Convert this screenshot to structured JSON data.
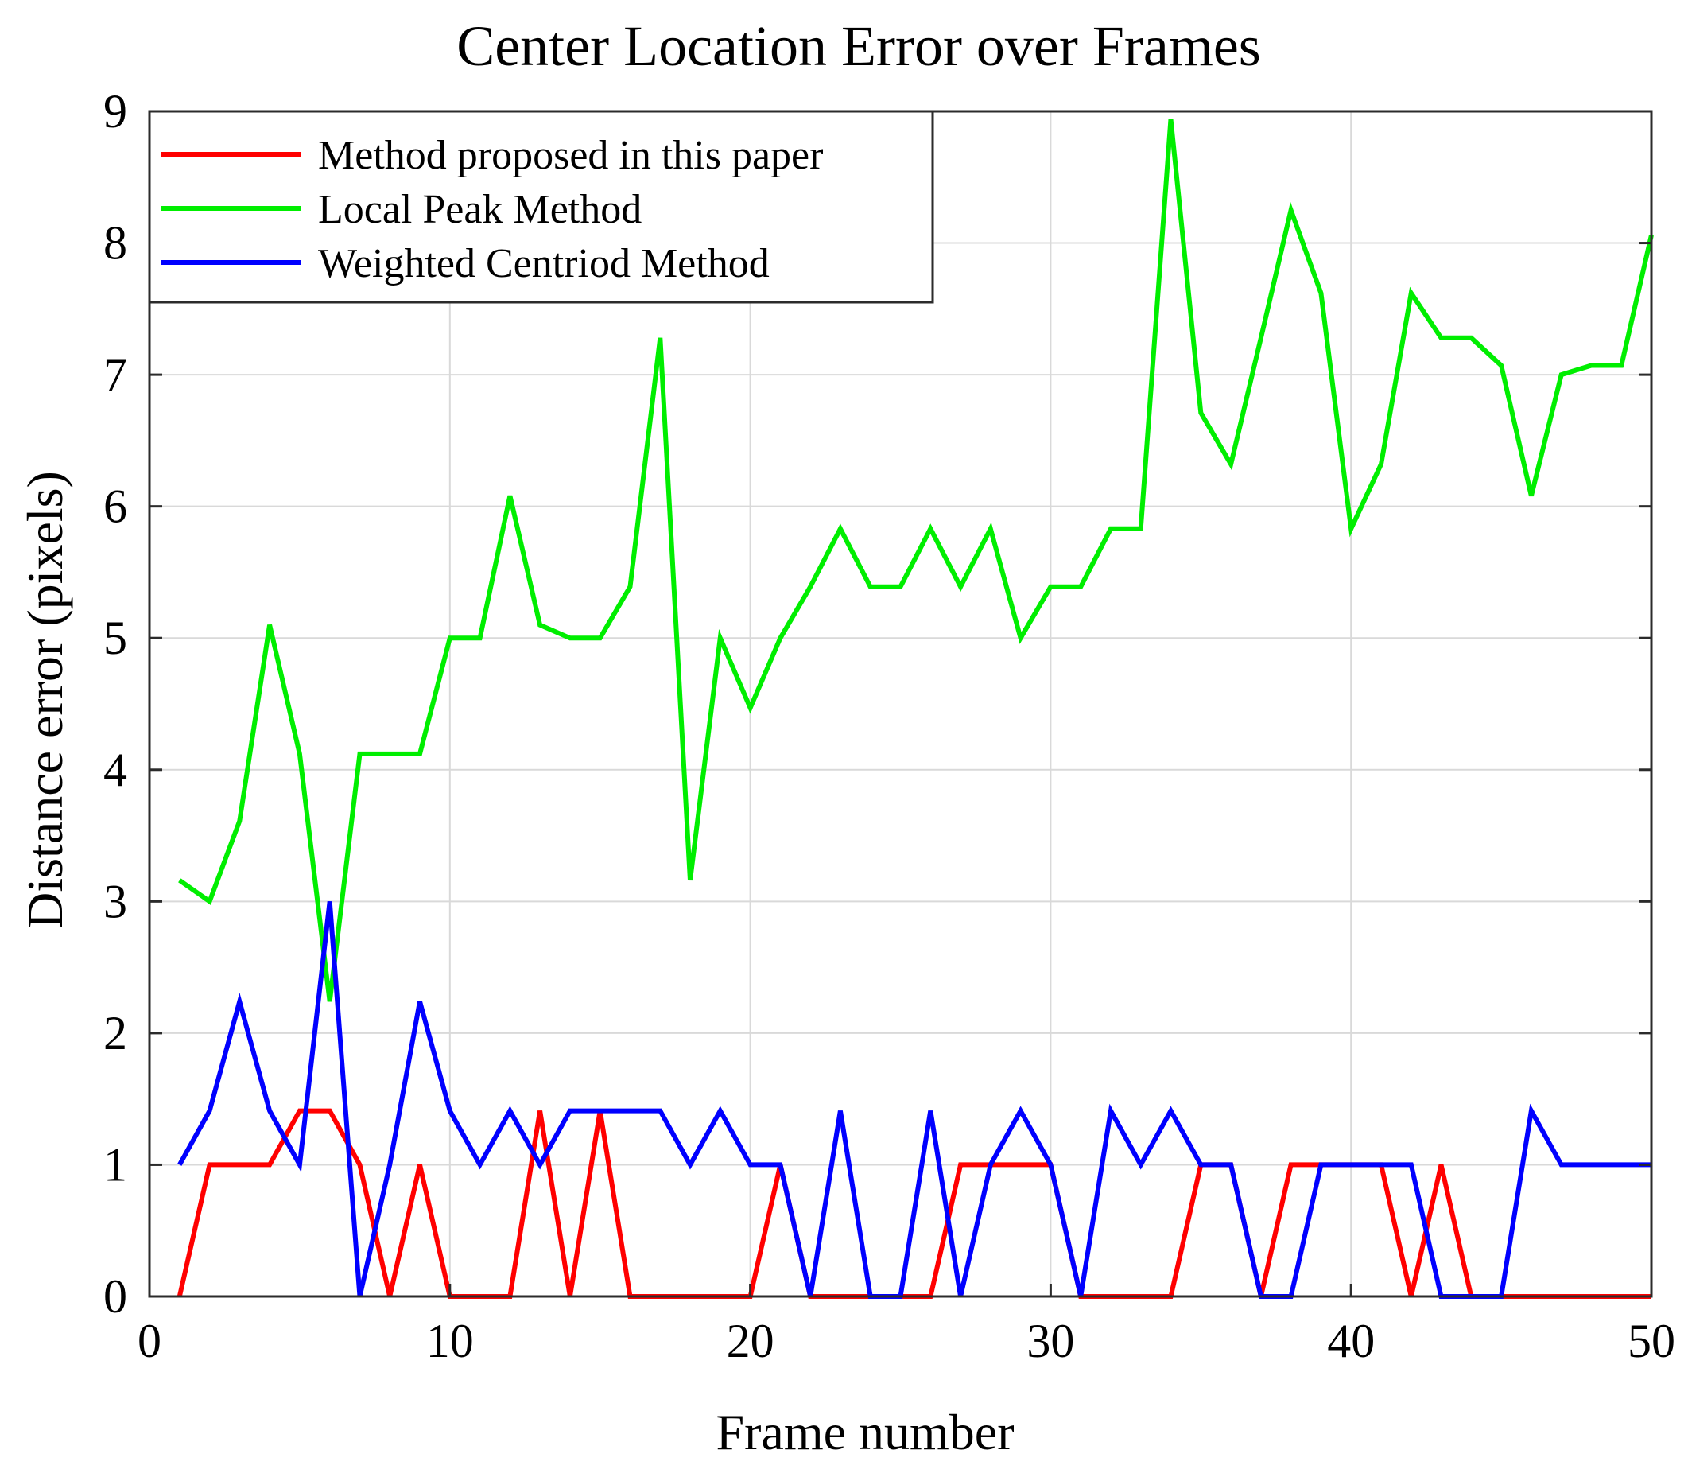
{
  "chart_data": {
    "type": "line",
    "title": "Center Location Error over Frames",
    "xlabel": "Frame number",
    "ylabel": "Distance error (pixels)",
    "xlim": [
      0,
      50
    ],
    "ylim": [
      0,
      9
    ],
    "xticks": [
      0,
      10,
      20,
      30,
      40,
      50
    ],
    "yticks": [
      0,
      1,
      2,
      3,
      4,
      5,
      6,
      7,
      8,
      9
    ],
    "grid": true,
    "legend_position": "top-left",
    "x": [
      1,
      2,
      3,
      4,
      5,
      6,
      7,
      8,
      9,
      10,
      11,
      12,
      13,
      14,
      15,
      16,
      17,
      18,
      19,
      20,
      21,
      22,
      23,
      24,
      25,
      26,
      27,
      28,
      29,
      30,
      31,
      32,
      33,
      34,
      35,
      36,
      37,
      38,
      39,
      40,
      41,
      42,
      43,
      44,
      45,
      46,
      47,
      48,
      49,
      50
    ],
    "series": [
      {
        "name": "Method proposed in this paper",
        "color": "#ff0000",
        "values": [
          0,
          1,
          1,
          1,
          1.41,
          1.41,
          1,
          0,
          1,
          0,
          0,
          0,
          1.41,
          0,
          1.41,
          0,
          0,
          0,
          0,
          0,
          1,
          0,
          0,
          0,
          0,
          0,
          1,
          1,
          1,
          1,
          0,
          0,
          0,
          0,
          1,
          1,
          0,
          1,
          1,
          1,
          1,
          0,
          1,
          0,
          0,
          0,
          0,
          0,
          0,
          0
        ]
      },
      {
        "name": "Local Peak Method",
        "color": "#00ee00",
        "values": [
          3.16,
          3.0,
          3.61,
          5.1,
          4.12,
          2.24,
          4.12,
          4.12,
          4.12,
          5.0,
          5.0,
          6.08,
          5.1,
          5.0,
          5.0,
          5.39,
          7.28,
          3.16,
          5.0,
          4.47,
          5.0,
          5.39,
          5.83,
          5.39,
          5.39,
          5.83,
          5.39,
          5.83,
          5.0,
          5.39,
          5.39,
          5.83,
          5.83,
          8.94,
          6.71,
          6.32,
          7.28,
          8.25,
          7.62,
          5.83,
          6.32,
          7.62,
          7.28,
          7.28,
          7.07,
          6.08,
          7.0,
          7.07,
          7.07,
          8.06
        ]
      },
      {
        "name": "Weighted Centriod Method",
        "color": "#0000ff",
        "values": [
          1,
          1.41,
          2.24,
          1.41,
          1,
          3.0,
          0,
          1,
          2.24,
          1.41,
          1,
          1.41,
          1,
          1.41,
          1.41,
          1.41,
          1.41,
          1,
          1.41,
          1,
          1,
          0,
          1.41,
          0,
          0,
          1.41,
          0,
          1,
          1.41,
          1,
          0,
          1.41,
          1,
          1.41,
          1,
          1,
          0,
          0,
          1,
          1,
          1,
          1,
          0,
          0,
          0,
          1.41,
          1,
          1,
          1,
          1
        ]
      }
    ]
  }
}
